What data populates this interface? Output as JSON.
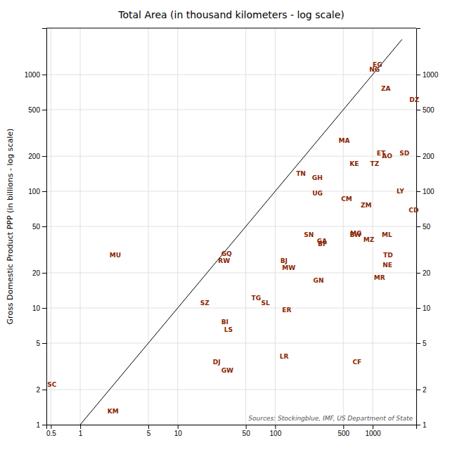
{
  "chart_data": {
    "type": "scatter",
    "title": "Total Area (in thousand kilometers - log scale)",
    "y_label": "Gross Domestic Product PPP (in billions - log scale)",
    "annotations": [
      "Sources: Stockingblue, IMF, US Department of State"
    ],
    "log": true,
    "grid": true,
    "xlim": [
      0.45,
      2800
    ],
    "ylim": [
      1,
      2500
    ],
    "y2lim": [
      1,
      2500
    ],
    "xticks": [
      0.5,
      1,
      5,
      10,
      50,
      100,
      500,
      1000
    ],
    "yticks": [
      1,
      2,
      5,
      10,
      20,
      50,
      100,
      200,
      500,
      1000
    ],
    "y2ticks": [
      1,
      2,
      5,
      10,
      20,
      50,
      100,
      200,
      500,
      1000
    ],
    "series": [
      {
        "type": "scatter",
        "marker": "text",
        "color": "#8B2500",
        "labels": [
          "SC",
          "KM",
          "MU",
          "DJ",
          "GW",
          "BI",
          "LS",
          "SZ",
          "RW",
          "GQ",
          "TG",
          "SL",
          "ER",
          "BJ",
          "MW",
          "LR",
          "GN",
          "TN",
          "GH",
          "MA",
          "UG",
          "SN",
          "GA",
          "BF",
          "CM",
          "ZM",
          "KE",
          "TZ",
          "ET",
          "AO",
          "SD",
          "MG",
          "BW",
          "MZ",
          "ML",
          "TD",
          "NE",
          "MR",
          "CF",
          "LY",
          "CD",
          "ZA",
          "DZ",
          "NG",
          "EG"
        ],
        "x": [
          0.46,
          1.9,
          2.0,
          23,
          28,
          28,
          30,
          17,
          26,
          28,
          57,
          72,
          118,
          113,
          118,
          111,
          246,
          164,
          239,
          447,
          241,
          197,
          268,
          274,
          475,
          753,
          580,
          945,
          1100,
          1247,
          1886,
          587,
          582,
          802,
          1240,
          1284,
          1267,
          1031,
          623,
          1760,
          2345,
          1219,
          2382,
          924,
          1001
        ],
        "values": [
          2.2,
          1.3,
          28,
          3.4,
          2.9,
          7.5,
          6.5,
          11,
          25,
          29,
          12,
          11,
          9.5,
          25,
          22,
          3.8,
          17,
          140,
          130,
          270,
          95,
          42,
          37,
          35,
          85,
          75,
          170,
          170,
          210,
          200,
          210,
          43,
          42,
          38,
          42,
          28,
          23,
          18,
          3.4,
          100,
          68,
          750,
          600,
          1100,
          1200
        ]
      },
      {
        "type": "line",
        "color": "#000000",
        "x": [
          1.0,
          2000
        ],
        "values": [
          1.0,
          2000
        ]
      }
    ]
  }
}
